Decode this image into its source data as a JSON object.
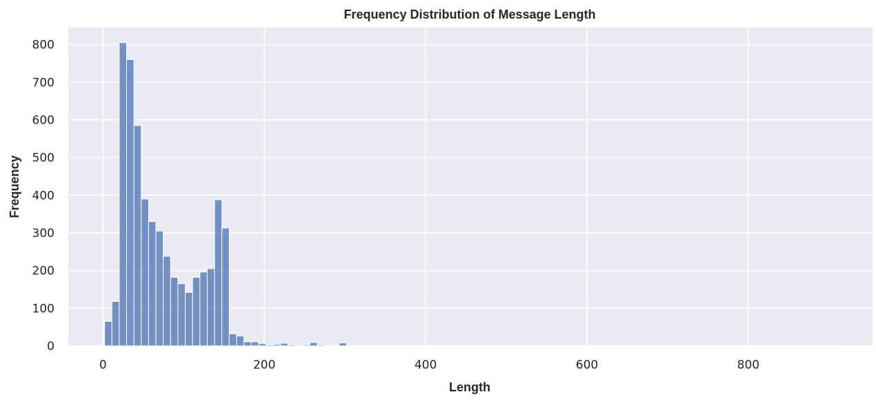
{
  "chart_data": {
    "type": "bar",
    "subtype": "histogram",
    "title": "Frequency Distribution of Message Length",
    "xlabel": "Length",
    "ylabel": "Frequency",
    "xlim": [
      -43,
      954
    ],
    "ylim": [
      0,
      845
    ],
    "xticks": [
      0,
      200,
      400,
      600,
      800
    ],
    "yticks": [
      0,
      100,
      200,
      300,
      400,
      500,
      600,
      700,
      800
    ],
    "grid": true,
    "bin_width": 9.09,
    "bin_start": 2,
    "values": [
      65,
      118,
      805,
      760,
      585,
      390,
      330,
      305,
      238,
      182,
      165,
      142,
      182,
      196,
      205,
      388,
      313,
      32,
      26,
      11,
      11,
      6,
      3,
      4,
      7,
      3,
      1,
      3,
      9,
      3,
      1,
      2,
      8,
      2,
      1,
      1,
      1,
      1,
      1,
      1,
      1,
      1,
      1,
      1,
      1,
      1,
      1,
      1,
      1,
      1,
      1,
      1,
      1,
      1,
      1,
      1,
      1,
      1,
      1,
      1,
      1,
      1,
      1,
      1,
      1,
      1,
      1,
      1,
      1,
      1,
      1,
      1,
      1,
      1,
      1,
      1,
      1,
      1,
      1,
      1,
      1,
      1,
      1,
      1,
      1,
      1,
      1,
      1,
      1,
      1,
      1,
      1,
      1,
      1,
      1,
      1,
      1,
      1,
      1,
      1
    ],
    "colors": {
      "bar": "#4c72b0",
      "plot_background": "#eaeaf2",
      "grid": "#ffffff"
    }
  }
}
